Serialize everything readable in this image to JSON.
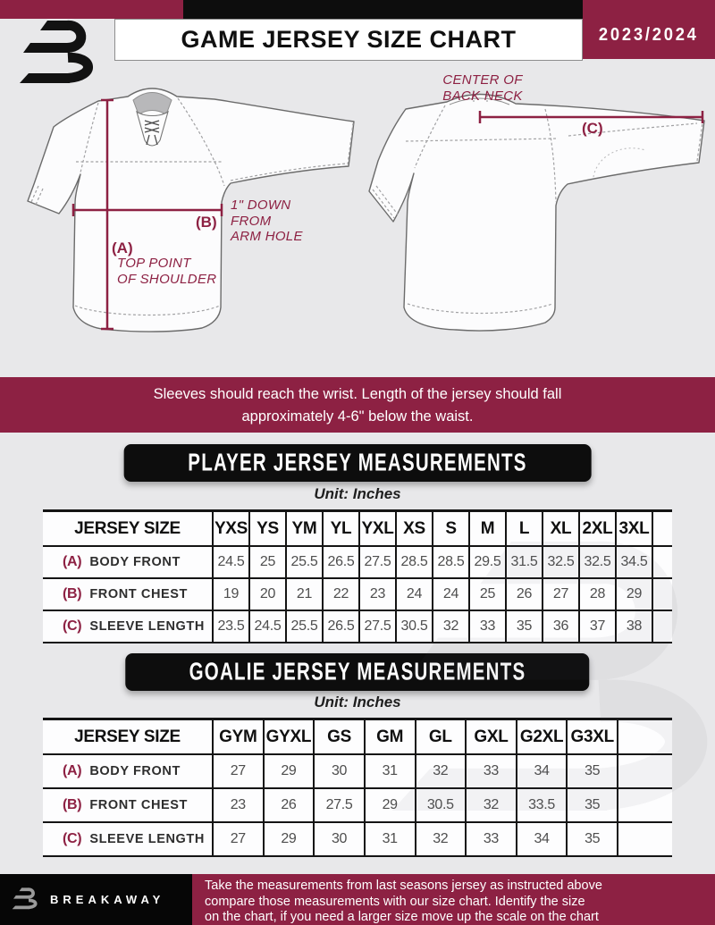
{
  "header": {
    "title": "GAME JERSEY SIZE CHART",
    "season": "2023/2024"
  },
  "diagram": {
    "front": {
      "label_a": "(A)",
      "a_note": [
        "TOP POINT",
        "OF SHOULDER"
      ],
      "label_b": "(B)",
      "b_note": [
        "1\" DOWN",
        "FROM",
        "ARM HOLE"
      ]
    },
    "back": {
      "label_c": "(C)",
      "c_note": [
        "CENTER OF",
        "BACK NECK"
      ]
    }
  },
  "banner": {
    "lines": [
      "Sleeves should reach the wrist. Length of the jersey should fall",
      "approximately 4-6\" below the waist."
    ]
  },
  "player_table": {
    "badge_label": "PLAYER JERSEY MEASUREMENTS",
    "unit": "Unit: Inches",
    "size_header_label": "JERSEY SIZE",
    "sizes": [
      "YXS",
      "YS",
      "YM",
      "YL",
      "YXL",
      "XS",
      "S",
      "M",
      "L",
      "XL",
      "2XL",
      "3XL"
    ],
    "rows": [
      {
        "key": "(A)",
        "label": "BODY FRONT",
        "values": [
          "24.5",
          "25",
          "25.5",
          "26.5",
          "27.5",
          "28.5",
          "28.5",
          "29.5",
          "31.5",
          "32.5",
          "32.5",
          "34.5"
        ]
      },
      {
        "key": "(B)",
        "label": "FRONT CHEST",
        "values": [
          "19",
          "20",
          "21",
          "22",
          "23",
          "24",
          "24",
          "25",
          "26",
          "27",
          "28",
          "29"
        ]
      },
      {
        "key": "(C)",
        "label": "SLEEVE LENGTH",
        "values": [
          "23.5",
          "24.5",
          "25.5",
          "26.5",
          "27.5",
          "30.5",
          "32",
          "33",
          "35",
          "36",
          "37",
          "38"
        ]
      }
    ]
  },
  "goalie_table": {
    "badge_label": "GOALIE JERSEY MEASUREMENTS",
    "unit": "Unit: Inches",
    "size_header_label": "JERSEY SIZE",
    "sizes": [
      "GYM",
      "GYXL",
      "GS",
      "GM",
      "GL",
      "GXL",
      "G2XL",
      "G3XL"
    ],
    "rows": [
      {
        "key": "(A)",
        "label": "BODY FRONT",
        "values": [
          "27",
          "29",
          "30",
          "31",
          "32",
          "33",
          "34",
          "35"
        ]
      },
      {
        "key": "(B)",
        "label": "FRONT CHEST",
        "values": [
          "23",
          "26",
          "27.5",
          "29",
          "30.5",
          "32",
          "33.5",
          "35"
        ]
      },
      {
        "key": "(C)",
        "label": "SLEEVE LENGTH",
        "values": [
          "27",
          "29",
          "30",
          "31",
          "32",
          "33",
          "34",
          "35"
        ]
      }
    ]
  },
  "footer": {
    "brand": "BREAKAWAY",
    "lines": [
      "Take the measurements from last seasons jersey as instructed above",
      "compare those measurements  with our size chart. Identify the size",
      "on the chart, if you need a larger size move up the scale on the chart"
    ]
  },
  "colors": {
    "maroon": "#8d2143",
    "black": "#0d0d0d",
    "bg": "#e8e8ea",
    "line": "#141414"
  }
}
